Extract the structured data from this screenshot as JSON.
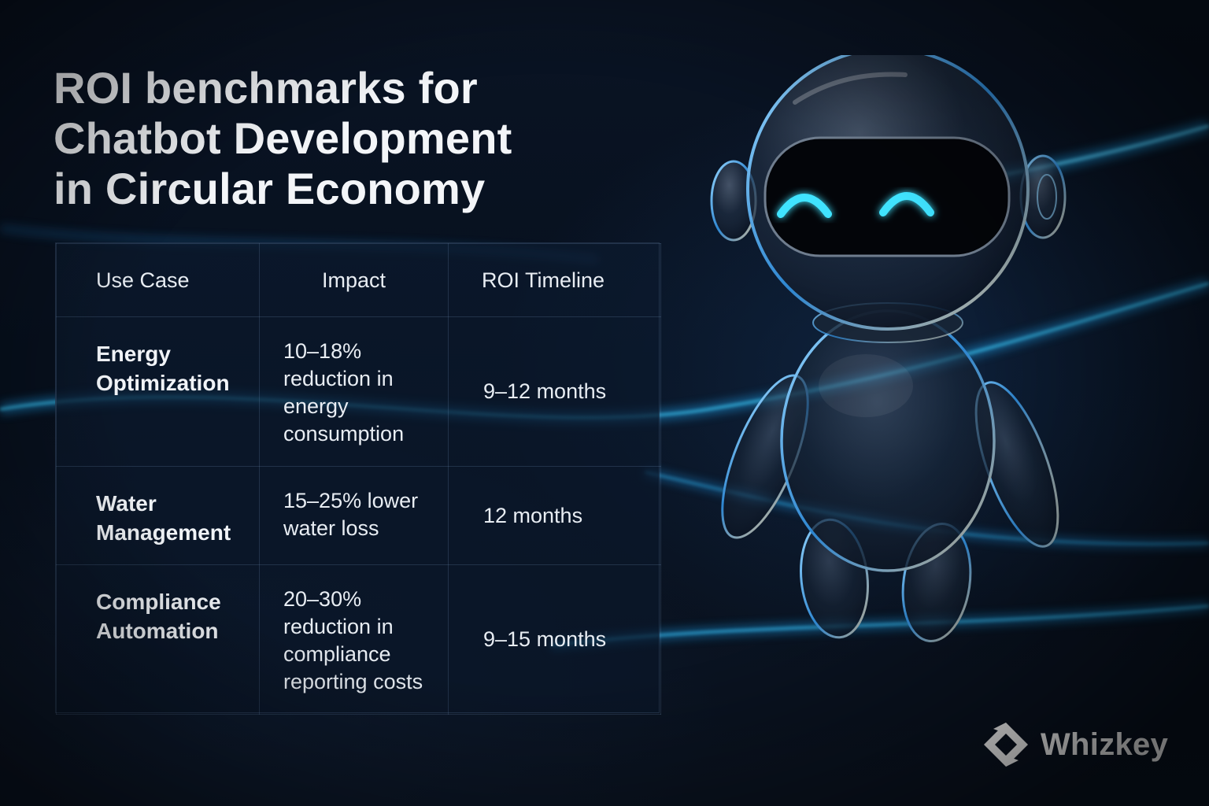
{
  "title_lines": [
    "ROI benchmarks for",
    "Chatbot Development",
    "in Circular Economy"
  ],
  "table": {
    "headers": [
      "Use Case",
      "Impact",
      "ROI Timeline"
    ],
    "rows": [
      {
        "use_case_lines": [
          "Energy",
          "Optimization"
        ],
        "impact_lines": [
          "10–18%",
          "reduction in",
          "energy",
          "consumption"
        ],
        "timeline": "9–12 months"
      },
      {
        "use_case_lines": [
          "Water",
          "Management"
        ],
        "impact_lines": [
          "15–25% lower",
          "water loss"
        ],
        "timeline": "12 months"
      },
      {
        "use_case_lines": [
          "Compliance",
          "Automation"
        ],
        "impact_lines": [
          "20–30%",
          "reduction in",
          "compliance",
          "reporting costs"
        ],
        "timeline": "9–15 months"
      }
    ]
  },
  "brand": {
    "name": "Whizkey",
    "logo_icon": "whizkey-logo-icon"
  },
  "robot": {
    "icon": "robot-mascot-icon"
  },
  "colors": {
    "background": "#07101e",
    "accent_glow": "#22c6f0",
    "text": "#eef2f7"
  }
}
